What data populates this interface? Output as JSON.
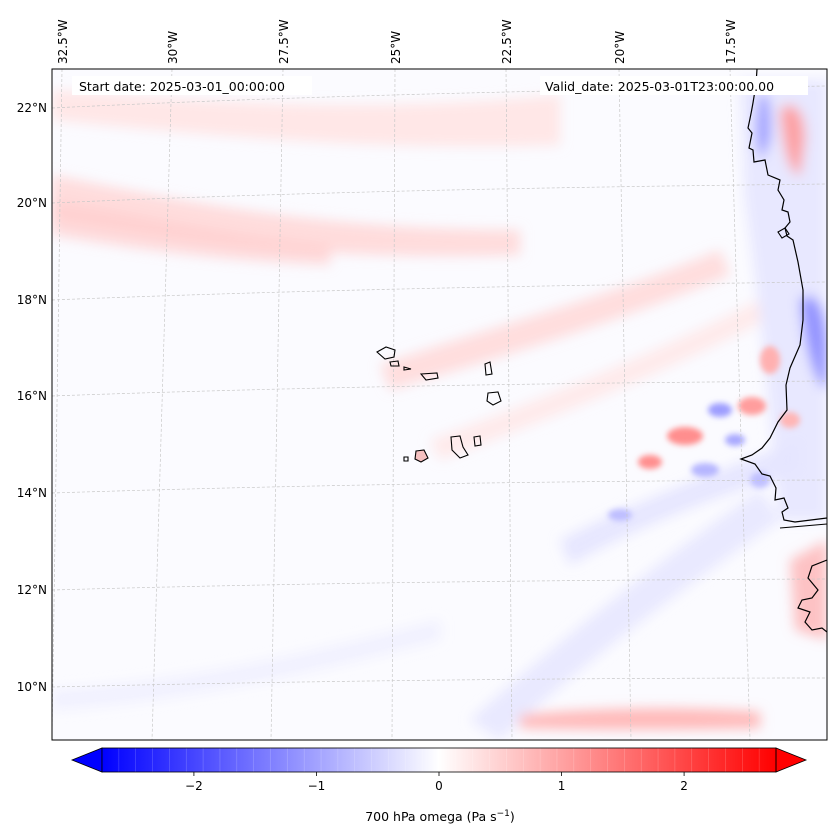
{
  "map": {
    "start_date": "Start date: 2025-03-01_00:00:00",
    "valid_date": "Valid_date: 2025-03-01T23:00:00.00",
    "lon_labels": [
      {
        "lon": -32.5,
        "label": "32.5°W"
      },
      {
        "lon": -30,
        "label": "30°W"
      },
      {
        "lon": -27.5,
        "label": "27.5°W"
      },
      {
        "lon": -25,
        "label": "25°W"
      },
      {
        "lon": -22.5,
        "label": "22.5°W"
      },
      {
        "lon": -20,
        "label": "20°W"
      },
      {
        "lon": -17.5,
        "label": "17.5°W"
      }
    ],
    "lat_labels": [
      {
        "lat": 22,
        "label": "22°N"
      },
      {
        "lat": 20,
        "label": "20°N"
      },
      {
        "lat": 18,
        "label": "18°N"
      },
      {
        "lat": 16,
        "label": "16°N"
      },
      {
        "lat": 14,
        "label": "14°N"
      },
      {
        "lat": 12,
        "label": "12°N"
      },
      {
        "lat": 10,
        "label": "10°N"
      }
    ],
    "field": "700 hPa omega",
    "colormap": "bwr",
    "colors": {
      "negative": "#0000ff",
      "zero": "#ffffff",
      "positive": "#ff0000",
      "coast": "#000000",
      "grid": "#c8c8c8"
    }
  },
  "colorbar": {
    "label_main": "700 hPa omega (Pa s",
    "label_exp": "−1",
    "label_close": ")",
    "min": -2.75,
    "max": 2.75,
    "extend": "both",
    "ticks": [
      {
        "value": -2,
        "label": "−2"
      },
      {
        "value": -1,
        "label": "−1"
      },
      {
        "value": 0,
        "label": "0"
      },
      {
        "value": 1,
        "label": "1"
      },
      {
        "value": 2,
        "label": "2"
      }
    ]
  }
}
